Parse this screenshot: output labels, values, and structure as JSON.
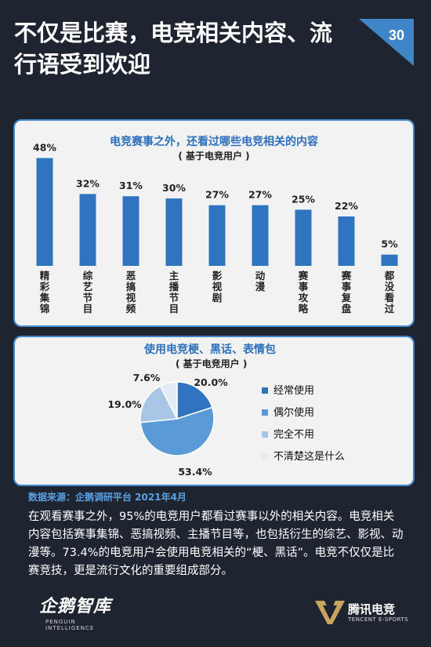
{
  "header": {
    "title": "不仅是比赛，电竞相关内容、流行语受到欢迎",
    "page_number": "30"
  },
  "colors": {
    "background": "#1f2530",
    "accent": "#3f86c8",
    "bar": "#2f74bf"
  },
  "chart_data": [
    {
      "type": "bar",
      "title": "电竞赛事之外，还看过哪些电竞相关的内容",
      "subtitle": "( 基于电竞用户 )",
      "categories": [
        "精彩集锦",
        "综艺节目",
        "恶搞视频",
        "主播节目",
        "影视剧",
        "动漫",
        "赛事攻略",
        "赛事复盘",
        "都没看过"
      ],
      "values": [
        48,
        32,
        31,
        30,
        27,
        27,
        25,
        22,
        5
      ],
      "value_labels": [
        "48%",
        "32%",
        "31%",
        "30%",
        "27%",
        "27%",
        "25%",
        "22%",
        "5%"
      ],
      "ylim": [
        0,
        55
      ],
      "grid": false
    },
    {
      "type": "pie",
      "title": "使用电竞梗、黑话、表情包",
      "subtitle": "( 基于电竞用户 )",
      "slices": [
        {
          "label": "经常使用",
          "value": 20.0,
          "text": "20.0%",
          "color": "#2f74bf"
        },
        {
          "label": "偶尔使用",
          "value": 53.4,
          "text": "53.4%",
          "color": "#5b9bd5"
        },
        {
          "label": "完全不用",
          "value": 19.0,
          "text": "19.0%",
          "color": "#a9c6e6"
        },
        {
          "label": "不清楚这是什么",
          "value": 7.6,
          "text": "7.6%",
          "color": "#e3ecf5"
        }
      ],
      "legend_position": "right"
    }
  ],
  "source": "数据来源：企鹅调研平台 2021年4月",
  "body_text": "在观看赛事之外，95%的电竞用户都看过赛事以外的相关内容。电竞相关内容包括赛事集锦、恶搞视频、主播节目等，也包括衍生的综艺、影视、动漫等。73.4%的电竞用户会使用电竞相关的“梗、黑话”。电竞不仅仅是比赛竞技，更是流行文化的重要组成部分。",
  "footer": {
    "left_logo_name": "企鹅智库",
    "left_logo_tag": "PENGUIN INTELLIGENCE",
    "right_logo_name": "腾讯电竞",
    "right_logo_tag": "TENCENT E-SPORTS"
  }
}
